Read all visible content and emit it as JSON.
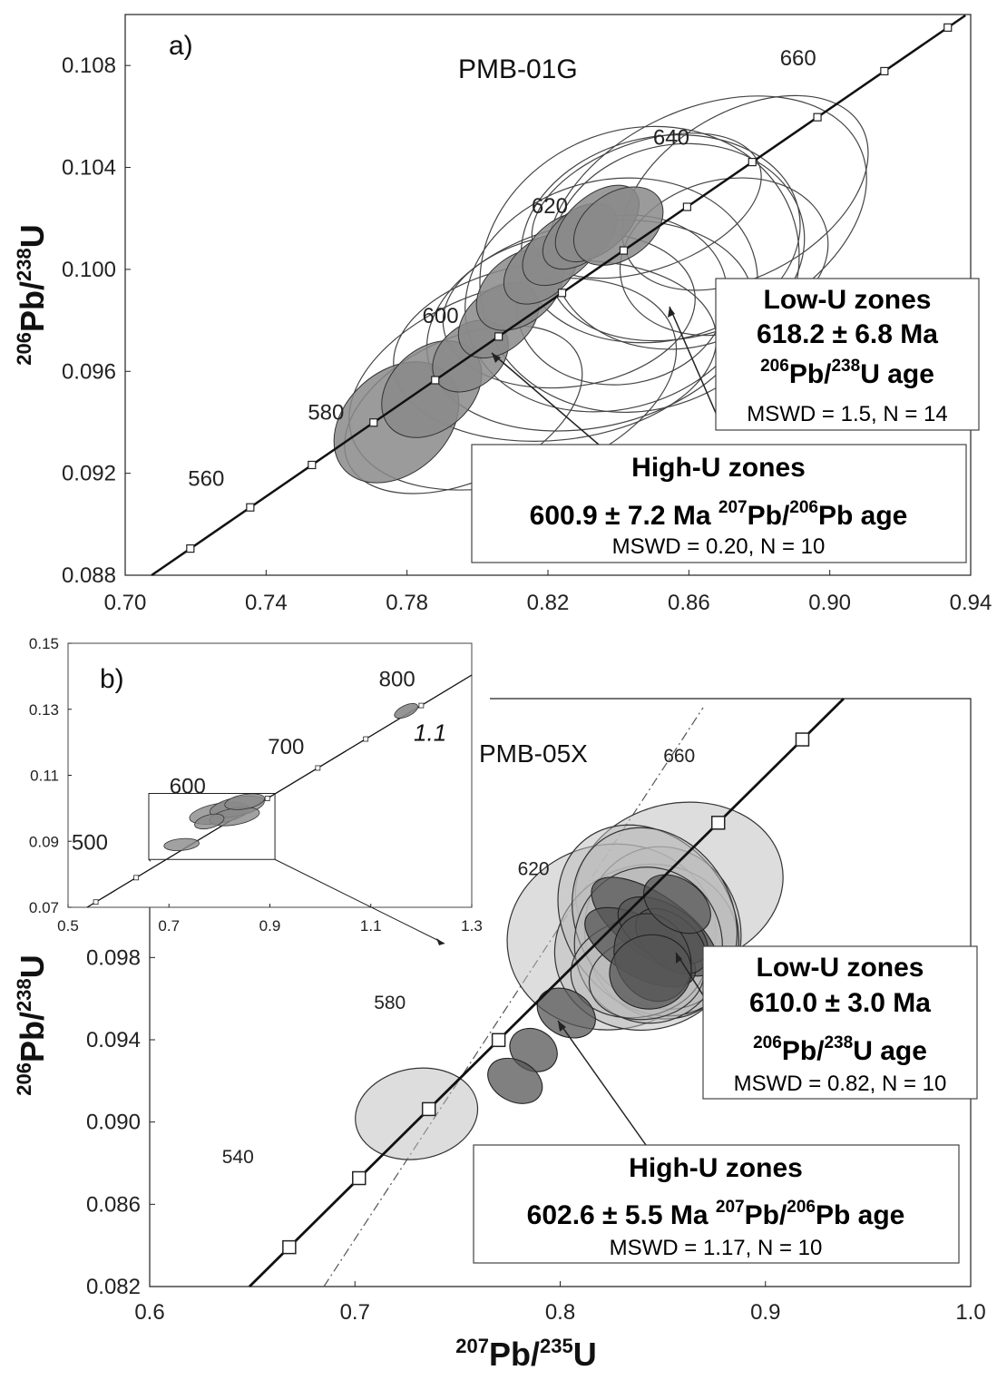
{
  "chart_data": [
    {
      "type": "scatter",
      "panel_label": "a)",
      "sample": "PMB-01G",
      "xlim": [
        0.7,
        0.94
      ],
      "ylim": [
        0.088,
        0.11
      ],
      "xticks": [
        "0.70",
        "0.74",
        "0.78",
        "0.82",
        "0.86",
        "0.90",
        "0.94"
      ],
      "yticks": [
        "0.088",
        "0.092",
        "0.096",
        "0.100",
        "0.104",
        "0.108"
      ],
      "ylabel": {
        "num": "206",
        "a": "Pb/",
        "den": "238",
        "b": "U"
      },
      "concordia_age_labels": [
        {
          "age": "560",
          "x": 0.723,
          "y": 0.0915
        },
        {
          "age": "580",
          "x": 0.757,
          "y": 0.0941
        },
        {
          "age": "600",
          "x": 0.7895,
          "y": 0.0979
        },
        {
          "age": "620",
          "x": 0.8205,
          "y": 0.1022
        },
        {
          "age": "640",
          "x": 0.855,
          "y": 0.1049
        },
        {
          "age": "660",
          "x": 0.891,
          "y": 0.108
        }
      ],
      "ellipses_low_u": [
        {
          "cx": 0.846,
          "cy": 0.1,
          "rx": 0.046,
          "ry": 0.0055,
          "rot": -20
        },
        {
          "cx": 0.838,
          "cy": 0.099,
          "rx": 0.042,
          "ry": 0.0045,
          "rot": -14
        },
        {
          "cx": 0.852,
          "cy": 0.1012,
          "rx": 0.04,
          "ry": 0.004,
          "rot": -12
        },
        {
          "cx": 0.865,
          "cy": 0.102,
          "rx": 0.048,
          "ry": 0.0043,
          "rot": -25
        },
        {
          "cx": 0.832,
          "cy": 0.0978,
          "rx": 0.047,
          "ry": 0.004,
          "rot": -12
        },
        {
          "cx": 0.822,
          "cy": 0.0968,
          "rx": 0.046,
          "ry": 0.0035,
          "rot": -6
        },
        {
          "cx": 0.857,
          "cy": 0.1009,
          "rx": 0.036,
          "ry": 0.004,
          "rot": -10
        },
        {
          "cx": 0.876,
          "cy": 0.103,
          "rx": 0.038,
          "ry": 0.0032,
          "rot": -30
        },
        {
          "cx": 0.81,
          "cy": 0.0955,
          "rx": 0.048,
          "ry": 0.0038,
          "rot": -18
        },
        {
          "cx": 0.796,
          "cy": 0.0945,
          "rx": 0.036,
          "ry": 0.0028,
          "rot": -25
        },
        {
          "cx": 0.841,
          "cy": 0.0988,
          "rx": 0.03,
          "ry": 0.0033,
          "rot": -10
        },
        {
          "cx": 0.87,
          "cy": 0.1005,
          "rx": 0.03,
          "ry": 0.003,
          "rot": -15
        },
        {
          "cx": 0.826,
          "cy": 0.0984,
          "rx": 0.036,
          "ry": 0.003,
          "rot": -8
        },
        {
          "cx": 0.848,
          "cy": 0.1025,
          "rx": 0.034,
          "ry": 0.0025,
          "rot": -20
        }
      ],
      "ellipses_high_u": [
        {
          "cx": 0.777,
          "cy": 0.094,
          "rx": 0.02,
          "ry": 0.002,
          "rot": -42
        },
        {
          "cx": 0.787,
          "cy": 0.0953,
          "rx": 0.016,
          "ry": 0.0016,
          "rot": -42
        },
        {
          "cx": 0.798,
          "cy": 0.0966,
          "rx": 0.012,
          "ry": 0.0012,
          "rot": -40
        },
        {
          "cx": 0.806,
          "cy": 0.098,
          "rx": 0.013,
          "ry": 0.0012,
          "rot": -40
        },
        {
          "cx": 0.812,
          "cy": 0.0992,
          "rx": 0.014,
          "ry": 0.0013,
          "rot": -40
        },
        {
          "cx": 0.818,
          "cy": 0.1,
          "rx": 0.012,
          "ry": 0.0011,
          "rot": -40
        },
        {
          "cx": 0.824,
          "cy": 0.1008,
          "rx": 0.013,
          "ry": 0.0011,
          "rot": -40
        },
        {
          "cx": 0.829,
          "cy": 0.1013,
          "rx": 0.012,
          "ry": 0.001,
          "rot": -38
        },
        {
          "cx": 0.834,
          "cy": 0.1018,
          "rx": 0.014,
          "ry": 0.0011,
          "rot": -40
        },
        {
          "cx": 0.84,
          "cy": 0.1017,
          "rx": 0.014,
          "ry": 0.0013,
          "rot": -35
        }
      ],
      "annotations": [
        {
          "id": "low",
          "lines": [
            "Low-U zones",
            "618.2 ± 6.8 Ma"
          ],
          "age": {
            "num": "206",
            "a": "Pb/",
            "den": "238",
            "b": "U age"
          },
          "mswd": "MSWD = 1.5, N = 14"
        },
        {
          "id": "high",
          "lines": [
            "High-U zones"
          ],
          "age_line": {
            "pre": "600.9 ± 7.2 Ma ",
            "num": "207",
            "a": "Pb/",
            "den": "206",
            "b": "Pb age"
          },
          "mswd": "MSWD = 0.20, N = 10"
        }
      ]
    },
    {
      "type": "scatter",
      "panel_label": "b)",
      "sample": "PMB-05X",
      "xlim": [
        0.6,
        1.0
      ],
      "ylim": [
        0.082,
        0.1
      ],
      "xticks": [
        "0.6",
        "0.7",
        "0.8",
        "0.9",
        "1.0"
      ],
      "yticks": [
        "0.082",
        "0.086",
        "0.090",
        "0.094",
        "0.098"
      ],
      "xlabel": {
        "num": "207",
        "a": "Pb/",
        "den": "235",
        "b": "U"
      },
      "ylabel": {
        "num": "206",
        "a": "Pb/",
        "den": "238",
        "b": "U"
      },
      "concordia_age_labels": [
        {
          "age": "540",
          "x": 0.643,
          "y": 0.088
        },
        {
          "age": "580",
          "x": 0.717,
          "y": 0.0955
        },
        {
          "age": "620",
          "x": 0.787,
          "y": 0.102
        },
        {
          "age": "660",
          "x": 0.858,
          "y": 0.1075
        }
      ],
      "ellipses_low_u": [
        {
          "cx": 0.858,
          "cy": 0.1015,
          "rx": 0.051,
          "ry": 0.004,
          "rot": -12
        },
        {
          "cx": 0.825,
          "cy": 0.099,
          "rx": 0.051,
          "ry": 0.0045,
          "rot": -10
        },
        {
          "cx": 0.842,
          "cy": 0.0985,
          "rx": 0.045,
          "ry": 0.004,
          "rot": -15
        },
        {
          "cx": 0.85,
          "cy": 0.0992,
          "rx": 0.038,
          "ry": 0.0042,
          "rot": -10
        },
        {
          "cx": 0.843,
          "cy": 0.0998,
          "rx": 0.04,
          "ry": 0.005,
          "rot": -38
        },
        {
          "cx": 0.846,
          "cy": 0.0999,
          "rx": 0.038,
          "ry": 0.0046,
          "rot": -30
        },
        {
          "cx": 0.843,
          "cy": 0.0986,
          "rx": 0.036,
          "ry": 0.0038,
          "rot": -10
        },
        {
          "cx": 0.838,
          "cy": 0.0975,
          "rx": 0.033,
          "ry": 0.0024,
          "rot": -10
        },
        {
          "cx": 0.842,
          "cy": 0.097,
          "rx": 0.028,
          "ry": 0.002,
          "rot": -8
        },
        {
          "cx": 0.73,
          "cy": 0.0904,
          "rx": 0.03,
          "ry": 0.0022,
          "rot": -10
        }
      ],
      "ellipses_high_u": [
        {
          "cx": 0.846,
          "cy": 0.0995,
          "rx": 0.015,
          "ry": 0.0036,
          "rot": -55
        },
        {
          "cx": 0.839,
          "cy": 0.0985,
          "rx": 0.014,
          "ry": 0.003,
          "rot": -60
        },
        {
          "cx": 0.85,
          "cy": 0.0993,
          "rx": 0.013,
          "ry": 0.0024,
          "rot": -60
        },
        {
          "cx": 0.854,
          "cy": 0.0988,
          "rx": 0.012,
          "ry": 0.002,
          "rot": -50
        },
        {
          "cx": 0.845,
          "cy": 0.098,
          "rx": 0.018,
          "ry": 0.0022,
          "rot": -25
        },
        {
          "cx": 0.844,
          "cy": 0.0973,
          "rx": 0.02,
          "ry": 0.0018,
          "rot": -10
        },
        {
          "cx": 0.803,
          "cy": 0.0953,
          "rx": 0.011,
          "ry": 0.0015,
          "rot": -60
        },
        {
          "cx": 0.787,
          "cy": 0.0935,
          "rx": 0.01,
          "ry": 0.0012,
          "rot": -60
        },
        {
          "cx": 0.778,
          "cy": 0.092,
          "rx": 0.01,
          "ry": 0.0014,
          "rot": -62
        },
        {
          "cx": 0.857,
          "cy": 0.1006,
          "rx": 0.012,
          "ry": 0.0018,
          "rot": -55
        }
      ],
      "annotations": [
        {
          "id": "low",
          "lines": [
            "Low-U zones",
            "610.0 ± 3.0 Ma"
          ],
          "age": {
            "num": "206",
            "a": "Pb/",
            "den": "238",
            "b": "U age"
          },
          "mswd": "MSWD = 0.82, N = 10"
        },
        {
          "id": "high",
          "lines": [
            "High-U zones"
          ],
          "age_line": {
            "pre": "602.6 ± 5.5 Ma ",
            "num": "207",
            "a": "Pb/",
            "den": "206",
            "b": "Pb age"
          },
          "mswd": "MSWD = 1.17, N = 10"
        }
      ],
      "inset": {
        "xlim": [
          0.5,
          1.3
        ],
        "ylim": [
          0.07,
          0.15
        ],
        "xticks": [
          "0.5",
          "0.7",
          "0.9",
          "1.1",
          "1.3"
        ],
        "yticks": [
          "0.07",
          "0.09",
          "0.11",
          "0.13",
          "0.15"
        ],
        "age_labels": [
          {
            "age": "500",
            "x": 0.543,
            "y": 0.0875
          },
          {
            "age": "600",
            "x": 0.737,
            "y": 0.1045
          },
          {
            "age": "700",
            "x": 0.932,
            "y": 0.1165
          },
          {
            "age": "800",
            "x": 1.152,
            "y": 0.137
          }
        ],
        "outlier_label": "1.1",
        "outlier_label_pos": {
          "x": 1.185,
          "y": 0.1205
        },
        "outlier": {
          "cx": 1.17,
          "cy": 0.1295,
          "rx": 0.025,
          "ry": 0.0017,
          "rot": -25
        },
        "zoom_box": {
          "x0": 0.66,
          "x1": 0.91,
          "y0": 0.0845,
          "y1": 0.1045
        },
        "ellipses": [
          {
            "cx": 0.8,
            "cy": 0.0985,
            "rx": 0.06,
            "ry": 0.003,
            "rot": -10
          },
          {
            "cx": 0.835,
            "cy": 0.1005,
            "rx": 0.055,
            "ry": 0.0028,
            "rot": -12
          },
          {
            "cx": 0.83,
            "cy": 0.0975,
            "rx": 0.05,
            "ry": 0.0025,
            "rot": -10
          },
          {
            "cx": 0.78,
            "cy": 0.096,
            "rx": 0.03,
            "ry": 0.002,
            "rot": -15
          },
          {
            "cx": 0.85,
            "cy": 0.102,
            "rx": 0.04,
            "ry": 0.0022,
            "rot": -10
          },
          {
            "cx": 0.725,
            "cy": 0.089,
            "rx": 0.035,
            "ry": 0.0018,
            "rot": -5
          }
        ]
      }
    }
  ]
}
